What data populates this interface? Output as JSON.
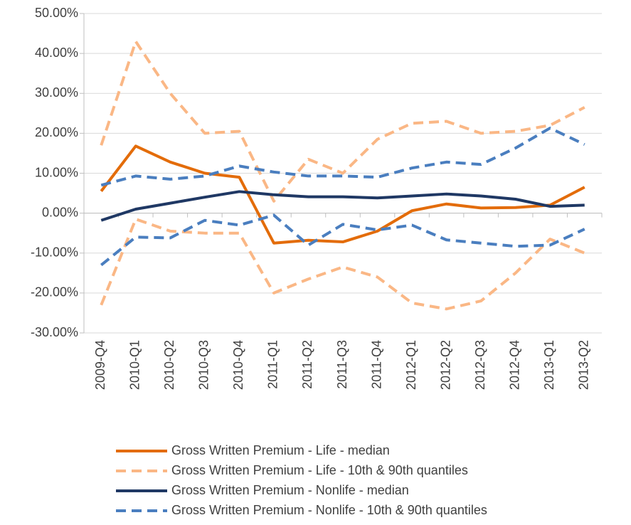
{
  "chart_data": {
    "type": "line",
    "categories": [
      "2009-Q4",
      "2010-Q1",
      "2010-Q2",
      "2010-Q3",
      "2010-Q4",
      "2011-Q1",
      "2011-Q2",
      "2011-Q3",
      "2011-Q4",
      "2012-Q1",
      "2012-Q2",
      "2012-Q3",
      "2012-Q4",
      "2013-Q1",
      "2013-Q2"
    ],
    "series": [
      {
        "name": "Gross Written Premium - Life - median",
        "color": "#e36c0a",
        "dashed": false,
        "values": [
          5.5,
          16.8,
          12.8,
          10,
          9,
          -7.5,
          -6.8,
          -7.2,
          -4.5,
          0.6,
          2.3,
          1.3,
          1.4,
          2,
          6.5
        ]
      },
      {
        "name": "Gross Written Premium - Life - 10th & 90th quantiles",
        "color": "#fab785",
        "dashed": true,
        "lower": [
          -23,
          -1.5,
          -4.5,
          -5,
          -5,
          -20,
          -16.5,
          -13.5,
          -16,
          -22.5,
          -24,
          -22,
          -15,
          -6.5,
          -10
        ],
        "upper": [
          17,
          43,
          30,
          20,
          20.5,
          3,
          13.5,
          10,
          18.5,
          22.5,
          23,
          20,
          20.5,
          22,
          26.5
        ]
      },
      {
        "name": "Gross Written Premium - Nonlife - median",
        "color": "#1f3864",
        "dashed": false,
        "values": [
          -1.8,
          1,
          2.5,
          4,
          5.4,
          4.6,
          4.1,
          4.1,
          3.8,
          4.3,
          4.8,
          4.3,
          3.5,
          1.7,
          2
        ]
      },
      {
        "name": "Gross Written Premium - Nonlife - 10th & 90th quantiles",
        "color": "#4a7ebf",
        "dashed": true,
        "lower": [
          -13,
          -6,
          -6.2,
          -1.8,
          -3,
          -0.5,
          -8,
          -2.8,
          -4.2,
          -3,
          -6.7,
          -7.5,
          -8.3,
          -8,
          -4
        ],
        "upper": [
          7,
          9.3,
          8.5,
          9.3,
          11.8,
          10.3,
          9.3,
          9.3,
          9,
          11.3,
          12.8,
          12.2,
          16.3,
          21.3,
          17.2
        ]
      }
    ],
    "ylim": [
      -30,
      50
    ],
    "yticks": [
      {
        "value": -30,
        "label": "-30.00%"
      },
      {
        "value": -20,
        "label": "-20.00%"
      },
      {
        "value": -10,
        "label": "-10.00%"
      },
      {
        "value": 0,
        "label": "0.00%"
      },
      {
        "value": 10,
        "label": "10.00%"
      },
      {
        "value": 20,
        "label": "20.00%"
      },
      {
        "value": 30,
        "label": "30.00%"
      },
      {
        "value": 40,
        "label": "40.00%"
      },
      {
        "value": 50,
        "label": "50.00%"
      }
    ],
    "grid": true
  }
}
